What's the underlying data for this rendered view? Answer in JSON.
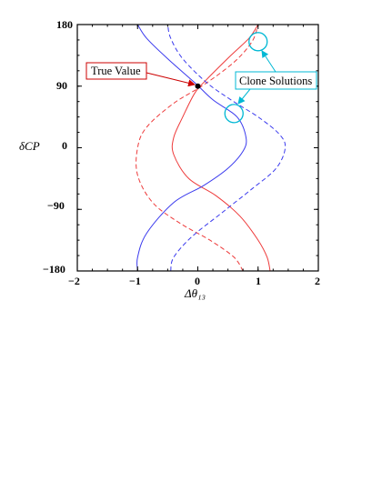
{
  "chart_data": {
    "type": "line",
    "title": "",
    "xlabel": "Δθ₁₃",
    "ylabel": "δCP",
    "xlim": [
      -2,
      2
    ],
    "ylim": [
      -180,
      180
    ],
    "x_ticks": [
      "−2",
      "−1",
      "0",
      "1",
      "2"
    ],
    "y_ticks": [
      "180",
      "90",
      "0",
      "−90",
      "−180"
    ],
    "grid": false,
    "series": [
      {
        "color": "#ee3b3b",
        "style": "solid",
        "points": [
          [
            1.2,
            -180
          ],
          [
            1.15,
            -160
          ],
          [
            1.0,
            -135
          ],
          [
            0.7,
            -100
          ],
          [
            0.3,
            -70
          ],
          [
            -0.15,
            -45
          ],
          [
            -0.4,
            -10
          ],
          [
            -0.4,
            15
          ],
          [
            -0.25,
            45
          ],
          [
            -0.05,
            80
          ],
          [
            0.15,
            100
          ],
          [
            0.55,
            135
          ],
          [
            0.85,
            160
          ],
          [
            1.0,
            180
          ]
        ]
      },
      {
        "color": "#3b3bee",
        "style": "solid",
        "points": [
          [
            -1.0,
            -180
          ],
          [
            -1.0,
            -160
          ],
          [
            -0.85,
            -125
          ],
          [
            -0.4,
            -80
          ],
          [
            0.1,
            -55
          ],
          [
            0.5,
            -30
          ],
          [
            0.75,
            -5
          ],
          [
            0.8,
            15
          ],
          [
            0.65,
            45
          ],
          [
            0.25,
            70
          ],
          [
            -0.05,
            95
          ],
          [
            -0.5,
            130
          ],
          [
            -0.85,
            160
          ],
          [
            -1.0,
            180
          ]
        ]
      },
      {
        "color": "#ee3b3b",
        "style": "dashed",
        "points": [
          [
            0.75,
            -180
          ],
          [
            0.6,
            -160
          ],
          [
            0.2,
            -135
          ],
          [
            -0.3,
            -110
          ],
          [
            -0.75,
            -80
          ],
          [
            -1.0,
            -40
          ],
          [
            -1.0,
            0
          ],
          [
            -0.85,
            30
          ],
          [
            -0.4,
            65
          ],
          [
            0.1,
            92
          ],
          [
            0.6,
            125
          ],
          [
            0.9,
            155
          ],
          [
            1.0,
            180
          ]
        ]
      },
      {
        "color": "#3b3bee",
        "style": "dashed",
        "points": [
          [
            -0.45,
            -180
          ],
          [
            -0.4,
            -160
          ],
          [
            -0.1,
            -130
          ],
          [
            0.4,
            -95
          ],
          [
            0.9,
            -60
          ],
          [
            1.3,
            -30
          ],
          [
            1.45,
            0
          ],
          [
            1.35,
            20
          ],
          [
            1.0,
            45
          ],
          [
            0.55,
            70
          ],
          [
            0.15,
            95
          ],
          [
            -0.25,
            130
          ],
          [
            -0.45,
            160
          ],
          [
            -0.5,
            180
          ]
        ]
      }
    ],
    "points": [
      {
        "x": 0,
        "y": 90,
        "label": "True Value",
        "color": "#000000"
      }
    ],
    "annotations": [
      {
        "text": "True Value",
        "box_color": "#cc0000",
        "arrow_color": "#cc0000",
        "target": [
          0,
          90
        ]
      },
      {
        "text": "Clone Solutions",
        "box_color": "#00b8d4",
        "arrow_color": "#00b8d4",
        "targets": [
          [
            1.0,
            155
          ],
          [
            0.65,
            50
          ]
        ]
      }
    ],
    "clone_circles": [
      [
        1.0,
        155
      ],
      [
        0.6,
        50
      ]
    ]
  }
}
